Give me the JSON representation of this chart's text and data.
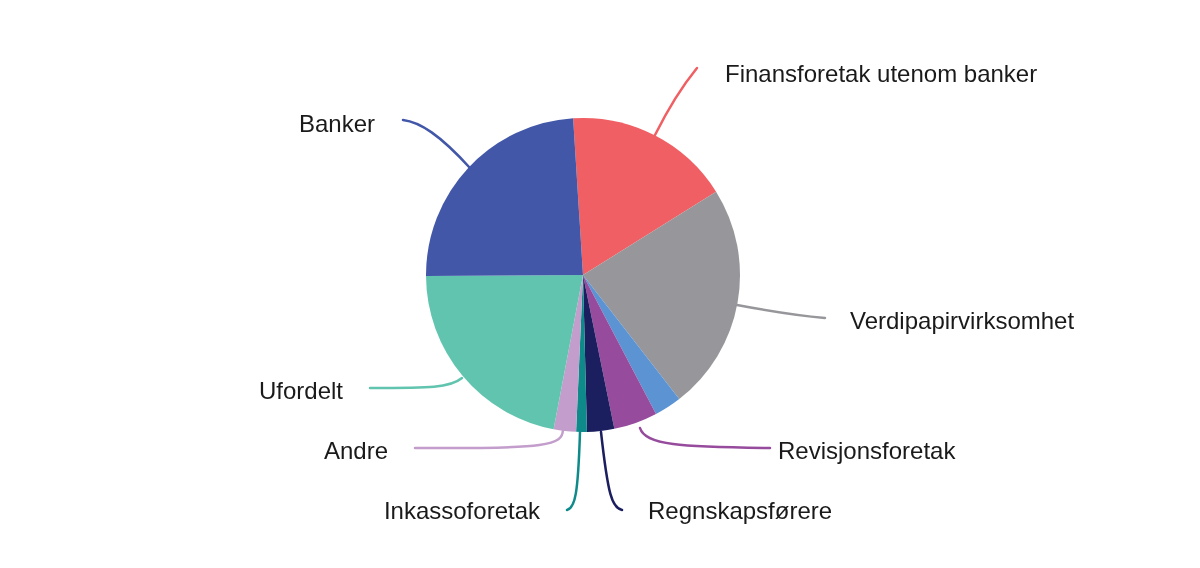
{
  "chart_data": {
    "type": "pie",
    "categories": [
      "Finansforetak utenom banker",
      "Verdipapirvirksomhet",
      null,
      "Revisjonsforetak",
      "Regnskapsførere",
      "Inkassoforetak",
      "Andre",
      "Ufordelt",
      "Banker"
    ],
    "values": [
      17.1,
      23.4,
      2.8,
      4.5,
      2.8,
      1.1,
      2.3,
      21.9,
      24.1
    ],
    "colors": [
      "#f05f63",
      "#97969a",
      "#5b93d3",
      "#964b9d",
      "#1b1f5f",
      "#0f8a8a",
      "#c39dcb",
      "#60c4ae",
      "#4257a7"
    ],
    "legend": false
  }
}
